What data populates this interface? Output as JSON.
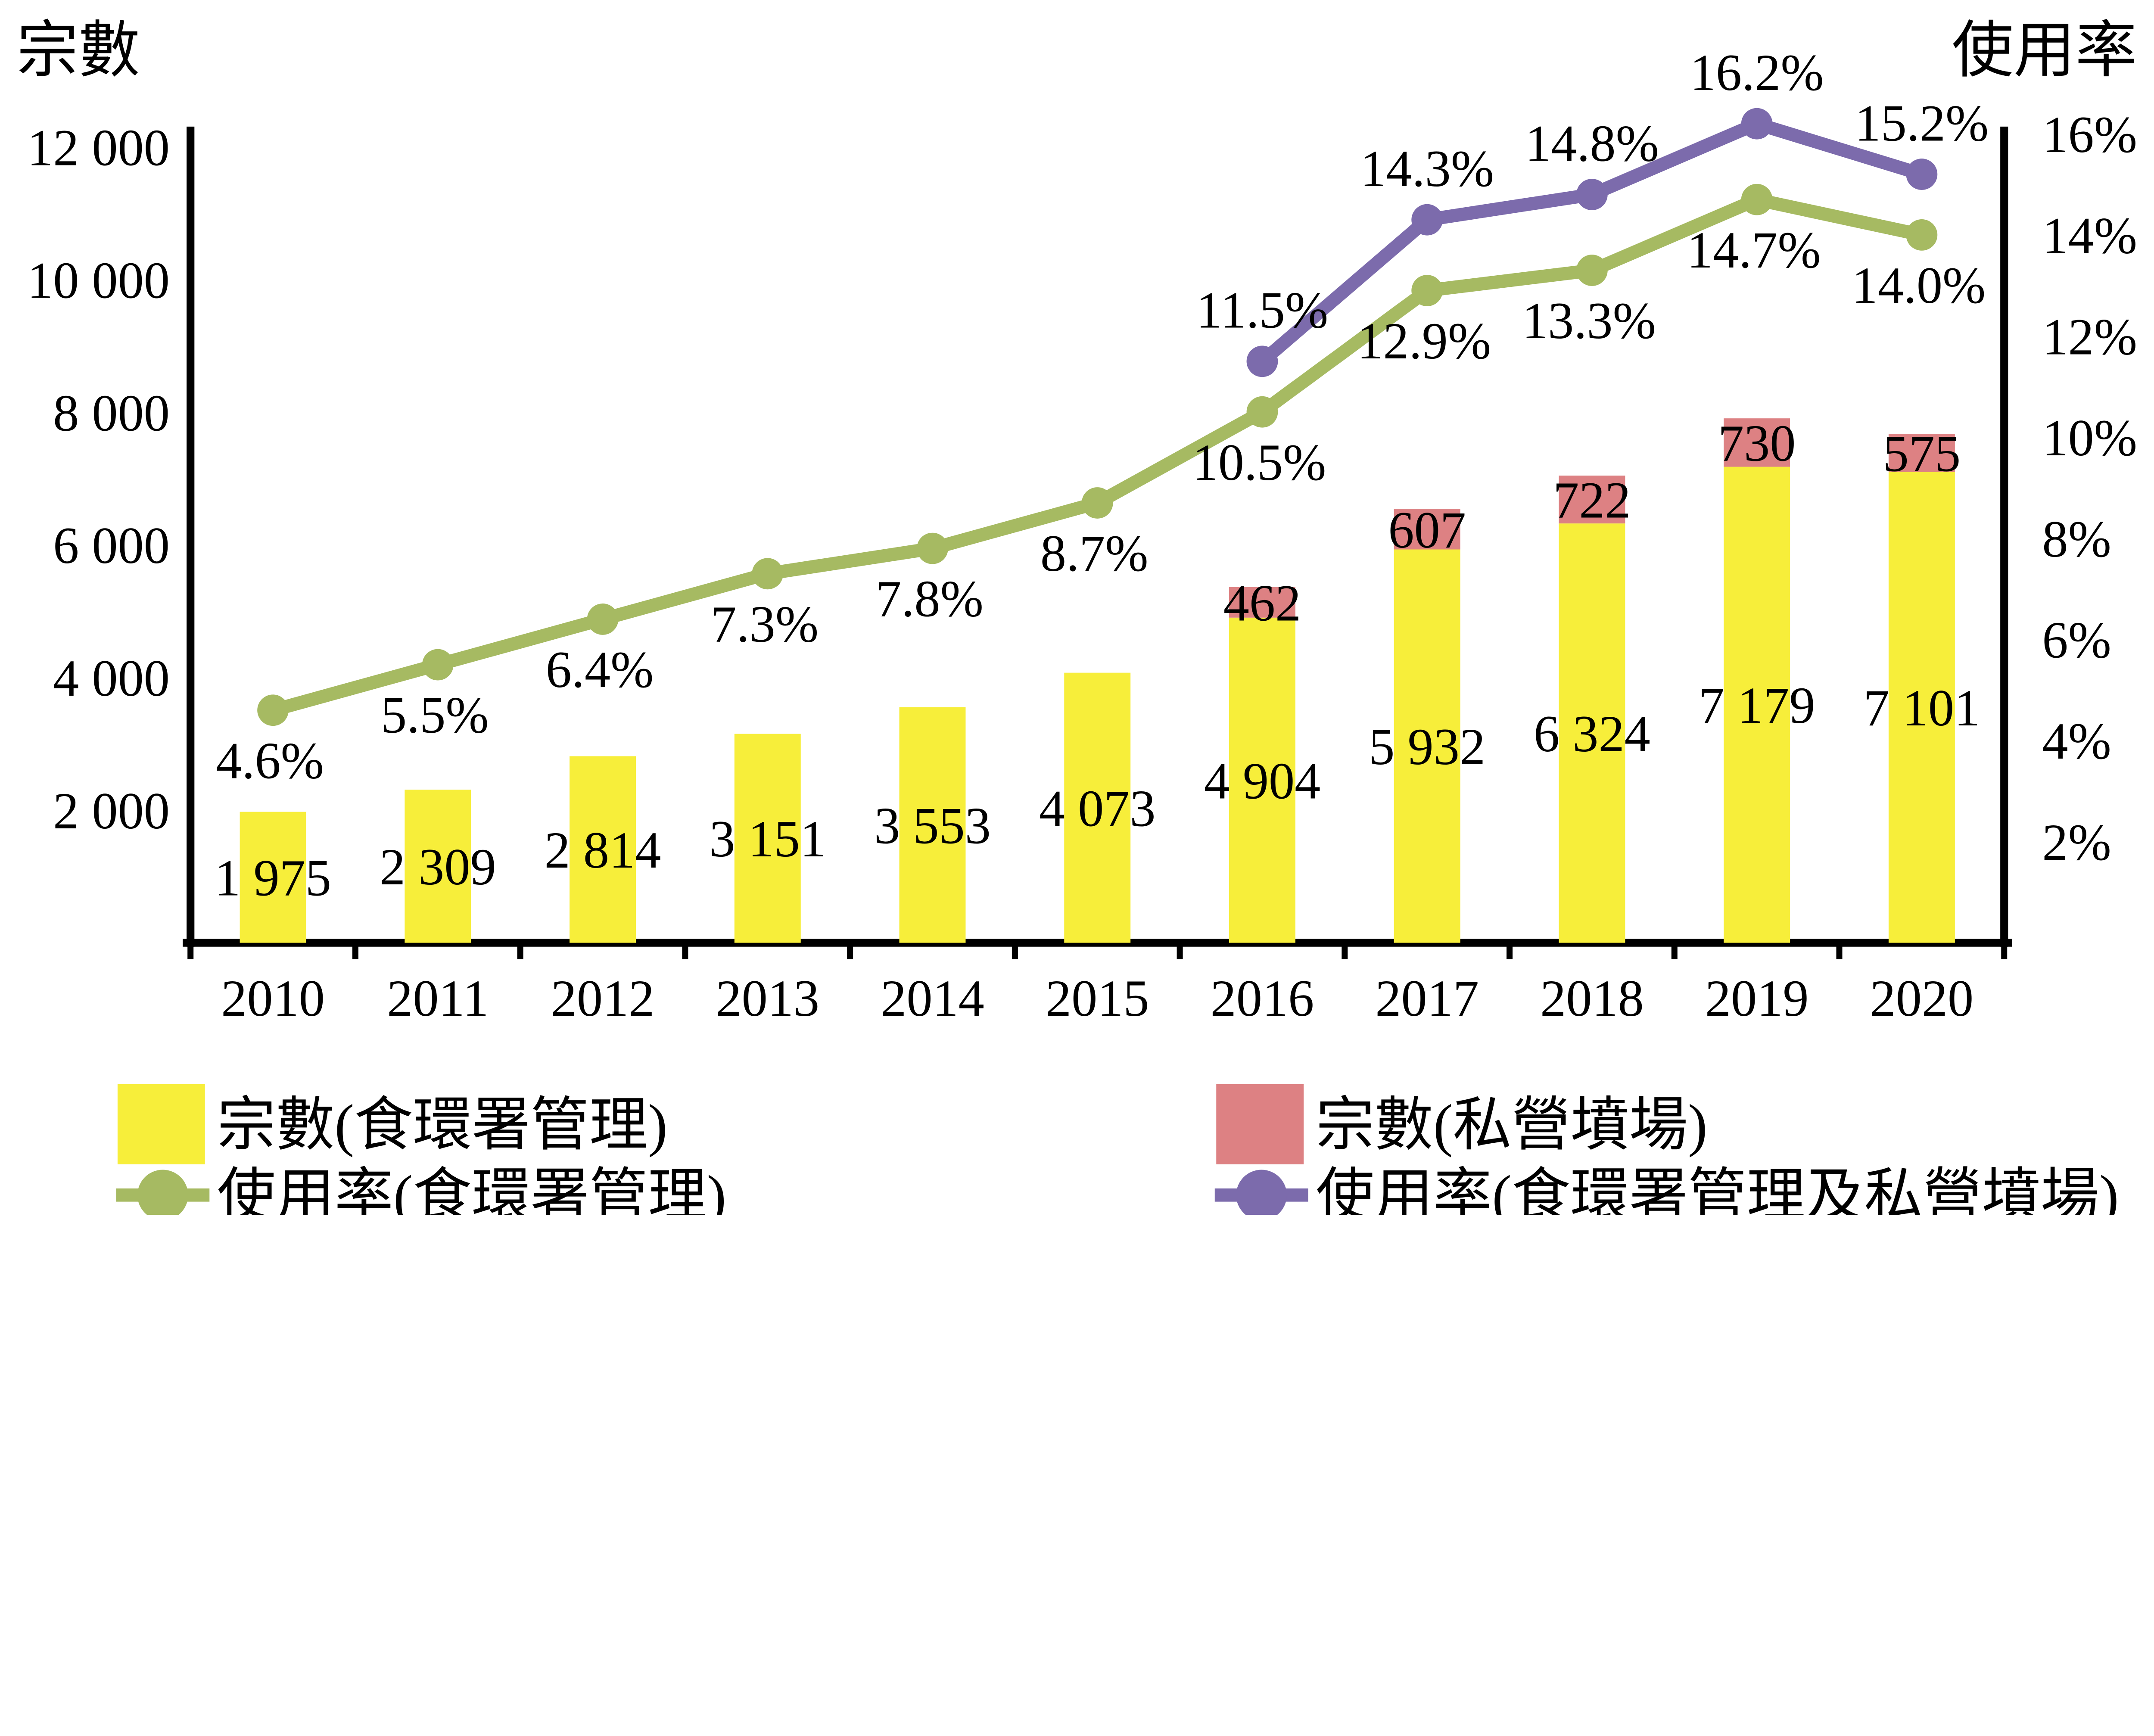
{
  "chart_data": {
    "type": "bar",
    "subtype": "stacked-bar-with-dual-axis-lines",
    "title": "",
    "categories": [
      "2010",
      "2011",
      "2012",
      "2013",
      "2014",
      "2015",
      "2016",
      "2017",
      "2018",
      "2019",
      "2020"
    ],
    "left_axis": {
      "title": "宗數",
      "ticks": [
        "2 000",
        "4 000",
        "6 000",
        "8 000",
        "10 000",
        "12 000"
      ],
      "tick_values": [
        2000,
        4000,
        6000,
        8000,
        10000,
        12000
      ],
      "min": 0
    },
    "right_axis": {
      "title": "使用率",
      "ticks": [
        "2%",
        "4%",
        "6%",
        "8%",
        "10%",
        "12%",
        "14%",
        "16%"
      ],
      "tick_values": [
        2,
        4,
        6,
        8,
        10,
        12,
        14,
        16
      ],
      "min": 0
    },
    "grid": "off",
    "legend_position": "bottom",
    "series": [
      {
        "name": "宗數(食環署管理)",
        "kind": "bar",
        "axis": "left",
        "color": "#F7EE3A",
        "values": [
          1975,
          2309,
          2814,
          3151,
          3553,
          4073,
          4904,
          5932,
          6324,
          7179,
          7101
        ],
        "labels": [
          "1 975",
          "2 309",
          "2 814",
          "3 151",
          "3 553",
          "4 073",
          "4 904",
          "5 932",
          "6 324",
          "7 179",
          "7 101"
        ]
      },
      {
        "name": "宗數(私營墳場)",
        "kind": "bar-stacked-top",
        "axis": "left",
        "color": "#DD8183",
        "values": [
          null,
          null,
          null,
          null,
          null,
          null,
          462,
          607,
          722,
          730,
          575
        ],
        "labels": [
          null,
          null,
          null,
          null,
          null,
          null,
          "462",
          "607",
          "722",
          "730",
          "575"
        ]
      },
      {
        "name": "使用率(食環署管理)",
        "kind": "line",
        "axis": "right",
        "color": "#A6BA62",
        "values": [
          4.6,
          5.5,
          6.4,
          7.3,
          7.8,
          8.7,
          10.5,
          12.9,
          13.3,
          14.7,
          14.0
        ],
        "labels": [
          "4.6%",
          "5.5%",
          "6.4%",
          "7.3%",
          "7.8%",
          "8.7%",
          "10.5%",
          "12.9%",
          "13.3%",
          "14.7%",
          "14.0%"
        ],
        "label_position": "below"
      },
      {
        "name": "使用率(食環署管理及私營墳場)",
        "kind": "line",
        "axis": "right",
        "color": "#7C6BAC",
        "values": [
          null,
          null,
          null,
          null,
          null,
          null,
          11.5,
          14.3,
          14.8,
          16.2,
          15.2
        ],
        "labels": [
          null,
          null,
          null,
          null,
          null,
          null,
          "11.5%",
          "14.3%",
          "14.8%",
          "16.2%",
          "15.2%"
        ],
        "label_position": "above"
      }
    ],
    "legend": [
      {
        "label": "宗數(食環署管理)",
        "marker": "square",
        "color": "#F7EE3A"
      },
      {
        "label": "宗數(私營墳場)",
        "marker": "square",
        "color": "#DD8183"
      },
      {
        "label": "使用率(食環署管理)",
        "marker": "line-dot",
        "color": "#A6BA62"
      },
      {
        "label": "使用率(食環署管理及私營墳場)",
        "marker": "line-dot",
        "color": "#7C6BAC"
      }
    ],
    "colors": {
      "bar_fehd": "#F7EE3A",
      "bar_private": "#DD8183",
      "line_fehd": "#A6BA62",
      "line_combined": "#7C6BAC",
      "axis": "#000000",
      "background": "#FFFFFF"
    }
  }
}
